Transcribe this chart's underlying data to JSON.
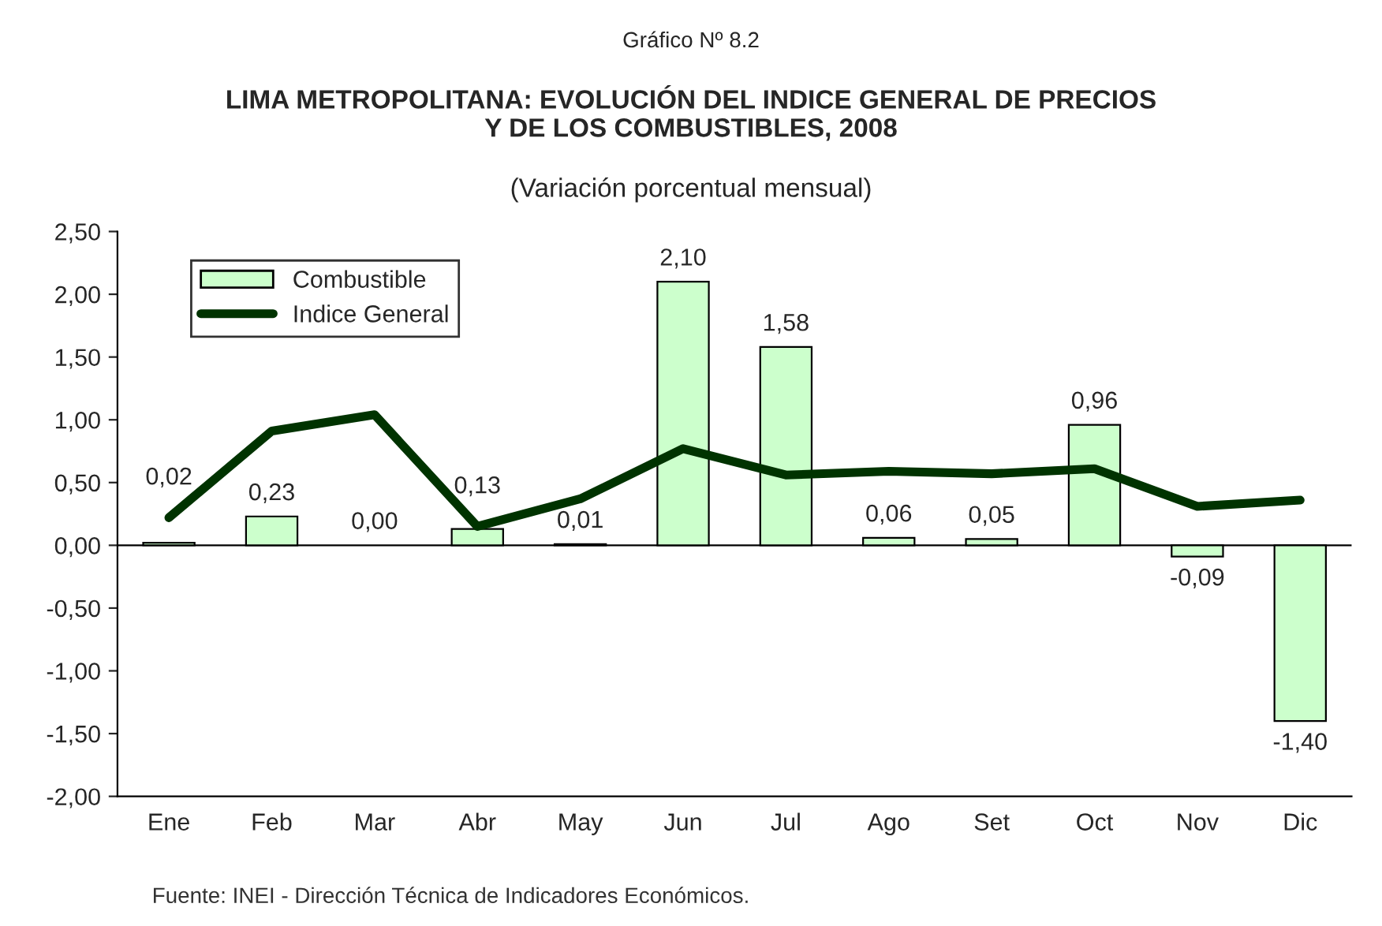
{
  "chart_data": {
    "type": "bar",
    "title": "LIMA METROPOLITANA: EVOLUCIÓN DEL INDICE GENERAL DE PRECIOS\nY DE LOS COMBUSTIBLES, 2008",
    "subtitle": "(Variación porcentual mensual)",
    "categories": [
      "Ene",
      "Feb",
      "Mar",
      "Abr",
      "May",
      "Jun",
      "Jul",
      "Ago",
      "Set",
      "Oct",
      "Nov",
      "Dic"
    ],
    "series": [
      {
        "name": "Combustible",
        "color": "#ccffcc",
        "values": [
          0.02,
          0.23,
          0.0,
          0.13,
          0.01,
          2.1,
          1.58,
          0.06,
          0.05,
          0.96,
          -0.09,
          -1.4
        ],
        "value_labels": [
          "0,02",
          "0,23",
          "0,00",
          "0,13",
          "0,01",
          "2,10",
          "1,58",
          "0,06",
          "0,05",
          "0,96",
          "-0,09",
          "-1,40"
        ]
      },
      {
        "name": "Indice General",
        "type": "line",
        "color": "#003300",
        "values": [
          0.22,
          0.91,
          1.04,
          0.15,
          0.37,
          0.77,
          0.56,
          0.59,
          0.57,
          0.61,
          0.31,
          0.36
        ]
      }
    ],
    "ylim": [
      -2.0,
      2.5
    ],
    "yticks": [
      {
        "value": -2.0,
        "label": "-2,00"
      },
      {
        "value": -1.5,
        "label": "-1,50"
      },
      {
        "value": -1.0,
        "label": "-1,00"
      },
      {
        "value": -0.5,
        "label": "-0,50"
      },
      {
        "value": 0.0,
        "label": "0,00"
      },
      {
        "value": 0.5,
        "label": "0,50"
      },
      {
        "value": 1.0,
        "label": "1,00"
      },
      {
        "value": 1.5,
        "label": "1,50"
      },
      {
        "value": 2.0,
        "label": "2,00"
      },
      {
        "value": 2.5,
        "label": "2,50"
      }
    ],
    "ref_lines": [
      {
        "axis": "y",
        "value": 0,
        "color": "#000000"
      }
    ],
    "legend": "top left",
    "grid": false,
    "marker": "none",
    "line_style": "solid",
    "annotations": [
      "Gráfico Nº 8.2",
      "Fuente: INEI - Dirección Técnica de Indicadores Económicos."
    ]
  }
}
